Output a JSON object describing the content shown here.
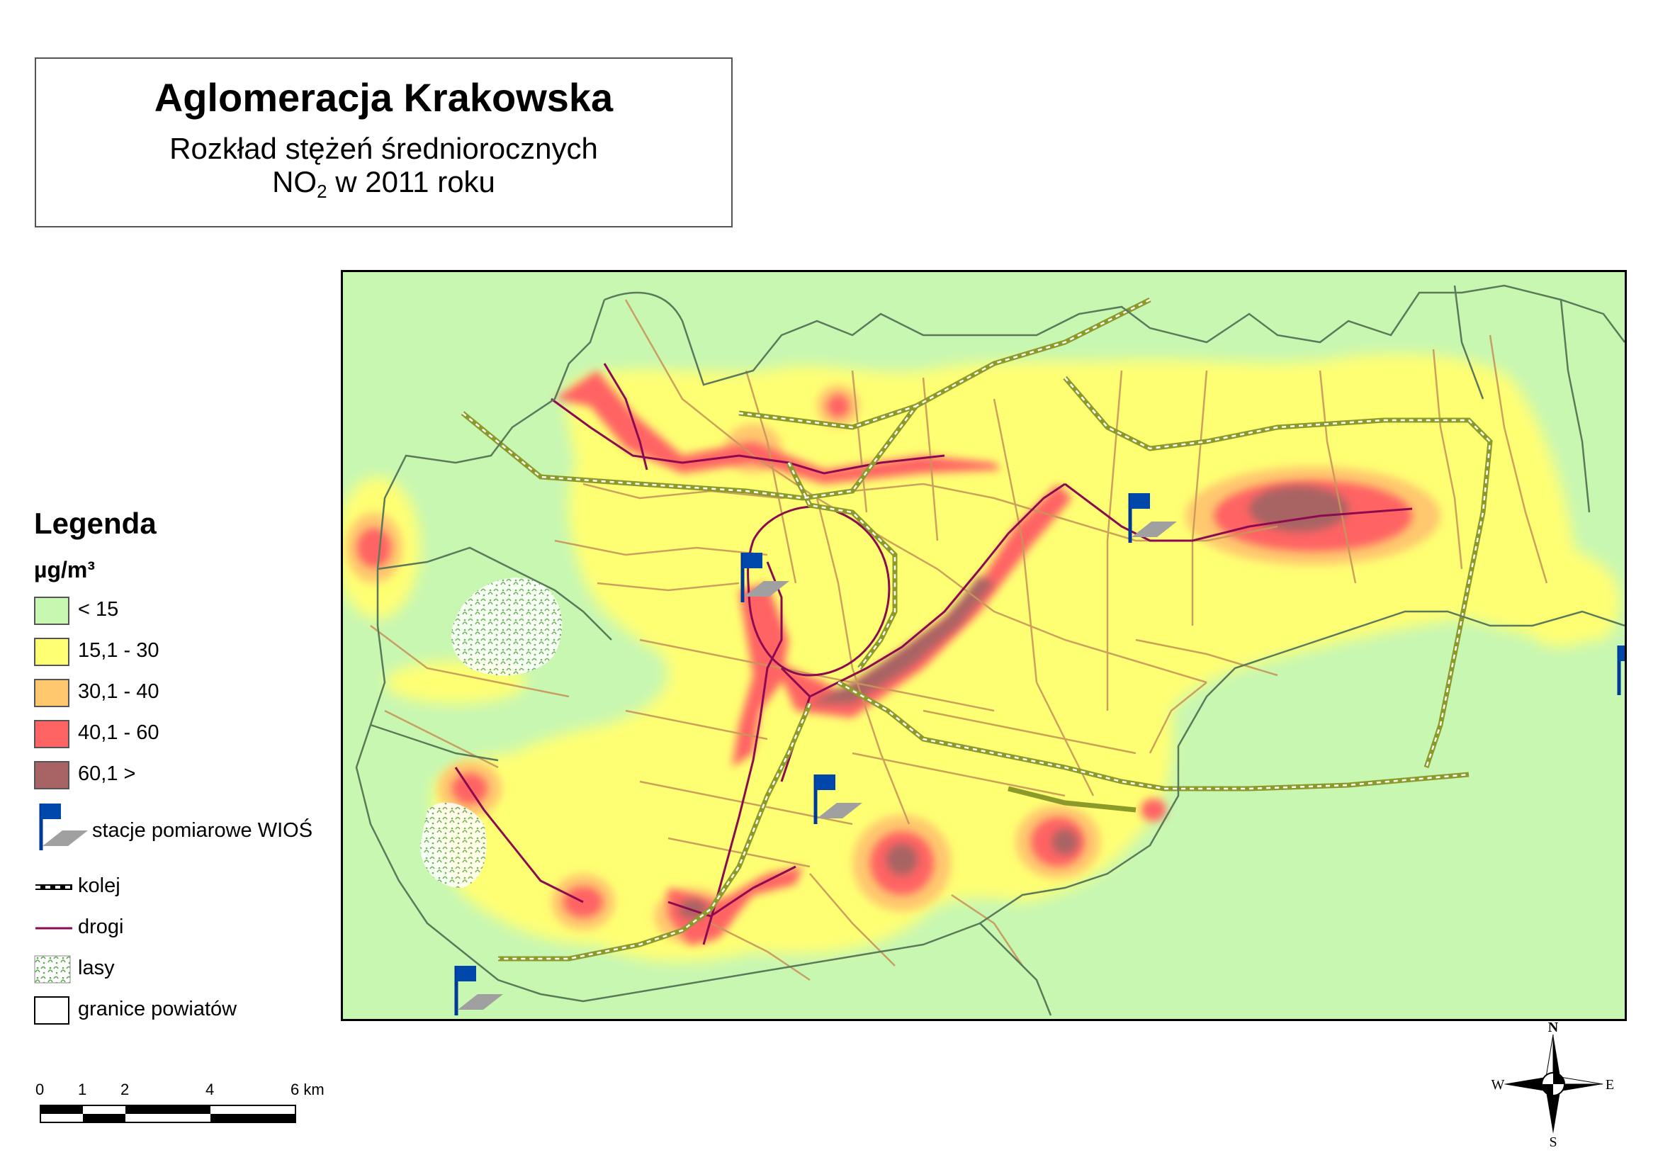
{
  "title": {
    "main": "Aglomeracja Krakowska",
    "line2": "Rozkład stężeń średniorocznych",
    "line3_pre": "NO",
    "line3_sub": "2",
    "line3_post": " w 2011 roku"
  },
  "legend": {
    "title": "Legenda",
    "unit": "µg/m³",
    "classes": [
      {
        "label": "< 15",
        "color": "#c8f7b2"
      },
      {
        "label": "15,1 - 30",
        "color": "#ffff73"
      },
      {
        "label": "30,1 - 40",
        "color": "#ffc86e"
      },
      {
        "label": "40,1 - 60",
        "color": "#ff6464"
      },
      {
        "label": "60,1 >",
        "color": "#a86464"
      }
    ],
    "symbols": {
      "stations": "stacje pomiarowe WIOŚ",
      "rail": "kolej",
      "roads": "drogi",
      "forests": "lasy",
      "borders": "granice powiatów"
    }
  },
  "scale": {
    "labels": [
      "0",
      "1",
      "2",
      "4",
      "6 km"
    ]
  },
  "compass": {
    "n": "N",
    "s": "S",
    "e": "E",
    "w": "W"
  }
}
